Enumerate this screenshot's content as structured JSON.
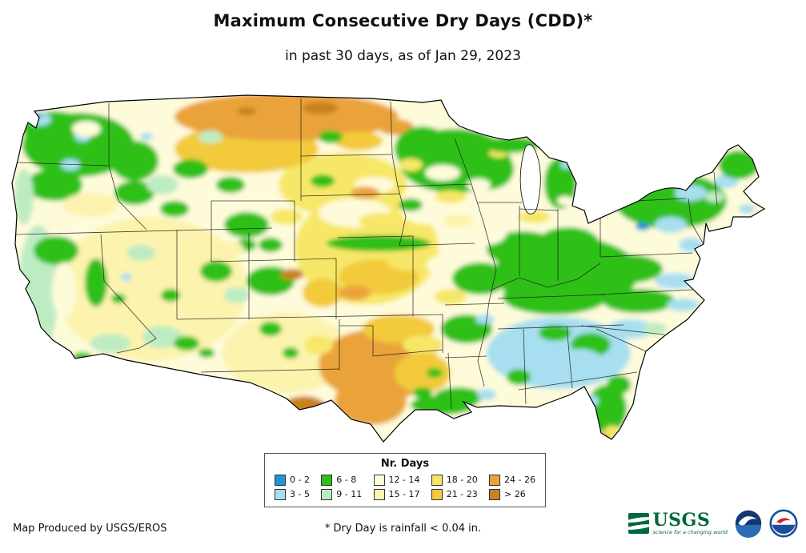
{
  "header": {
    "title": "Maximum Consecutive Dry Days (CDD)*",
    "subtitle": "in past 30 days, as of Jan 29, 2023"
  },
  "legend": {
    "title": "Nr. Days",
    "items": [
      {
        "label": "0 - 2",
        "color": "#1f96d3"
      },
      {
        "label": "3 - 5",
        "color": "#a8dff0"
      },
      {
        "label": "6 - 8",
        "color": "#2ec014"
      },
      {
        "label": "9 - 11",
        "color": "#bdecc3"
      },
      {
        "label": "12 - 14",
        "color": "#fefbda"
      },
      {
        "label": "15 - 17",
        "color": "#fcf3ae"
      },
      {
        "label": "18 - 20",
        "color": "#f7e768"
      },
      {
        "label": "21 - 23",
        "color": "#f2ca3a"
      },
      {
        "label": "24 - 26",
        "color": "#eaa33b"
      },
      {
        "label": "> 26",
        "color": "#c8821f"
      }
    ]
  },
  "footer": {
    "credit": "Map Produced by USGS/EROS",
    "note": "* Dry Day is rainfall < 0.04 in."
  },
  "logos": {
    "usgs": {
      "name": "USGS",
      "tagline": "science for a changing world"
    }
  }
}
